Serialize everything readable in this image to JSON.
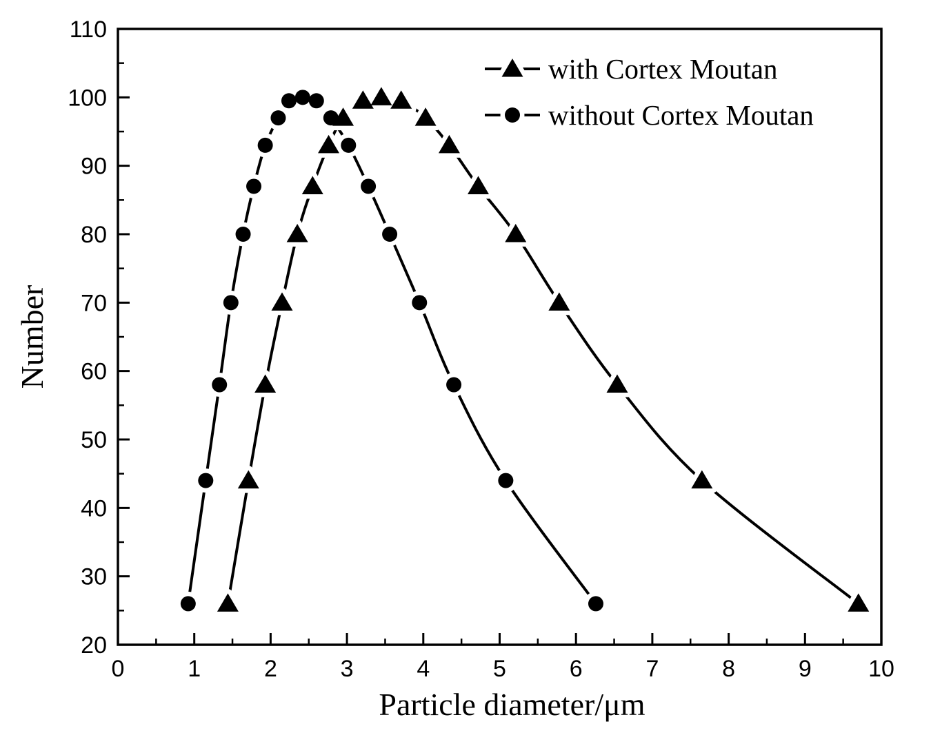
{
  "figure": {
    "background": "#ffffff",
    "ink_color": "#000000",
    "description": "line-symbol particle size distribution plot"
  },
  "chart_data": {
    "type": "line",
    "title": "",
    "xlabel": "Particle diameter/μm",
    "ylabel": "Number",
    "xlim": [
      0,
      10
    ],
    "ylim": [
      20,
      110
    ],
    "x_major_ticks": [
      0,
      1,
      2,
      3,
      4,
      5,
      6,
      7,
      8,
      9,
      10
    ],
    "x_tick_labels": [
      "0",
      "1",
      "2",
      "3",
      "4",
      "5",
      "6",
      "7",
      "8",
      "9",
      "10"
    ],
    "x_minor_step": 0.5,
    "y_major_ticks": [
      20,
      30,
      40,
      50,
      60,
      70,
      80,
      90,
      100,
      110
    ],
    "y_tick_labels": [
      "20",
      "30",
      "40",
      "50",
      "60",
      "70",
      "80",
      "90",
      "100",
      "110"
    ],
    "y_minor_step": 5,
    "grid": false,
    "legend_position": "top-right-inside",
    "legend": [
      {
        "label": "with Cortex Moutan",
        "marker": "triangle",
        "line": "solid"
      },
      {
        "label": "without Cortex Moutan",
        "marker": "circle",
        "line": "solid"
      }
    ],
    "series": [
      {
        "name": "with Cortex Moutan",
        "marker": "triangle",
        "color": "#000000",
        "points": [
          [
            1.44,
            26
          ],
          [
            1.71,
            44
          ],
          [
            1.93,
            58
          ],
          [
            2.15,
            70
          ],
          [
            2.35,
            80
          ],
          [
            2.55,
            87
          ],
          [
            2.76,
            93
          ],
          [
            2.95,
            97
          ],
          [
            3.21,
            99.5
          ],
          [
            3.45,
            100
          ],
          [
            3.71,
            99.5
          ],
          [
            4.03,
            97
          ],
          [
            4.34,
            93
          ],
          [
            4.72,
            87
          ],
          [
            5.21,
            80
          ],
          [
            5.78,
            70
          ],
          [
            6.54,
            58
          ],
          [
            7.65,
            44
          ],
          [
            9.7,
            26
          ]
        ]
      },
      {
        "name": "without Cortex Moutan",
        "marker": "circle",
        "color": "#000000",
        "points": [
          [
            0.92,
            26
          ],
          [
            1.15,
            44
          ],
          [
            1.33,
            58
          ],
          [
            1.48,
            70
          ],
          [
            1.64,
            80
          ],
          [
            1.78,
            87
          ],
          [
            1.93,
            93
          ],
          [
            2.1,
            97
          ],
          [
            2.24,
            99.5
          ],
          [
            2.42,
            100
          ],
          [
            2.6,
            99.5
          ],
          [
            2.79,
            97
          ],
          [
            3.02,
            93
          ],
          [
            3.28,
            87
          ],
          [
            3.56,
            80
          ],
          [
            3.95,
            70
          ],
          [
            4.4,
            58
          ],
          [
            5.08,
            44
          ],
          [
            6.26,
            26
          ]
        ]
      }
    ]
  }
}
